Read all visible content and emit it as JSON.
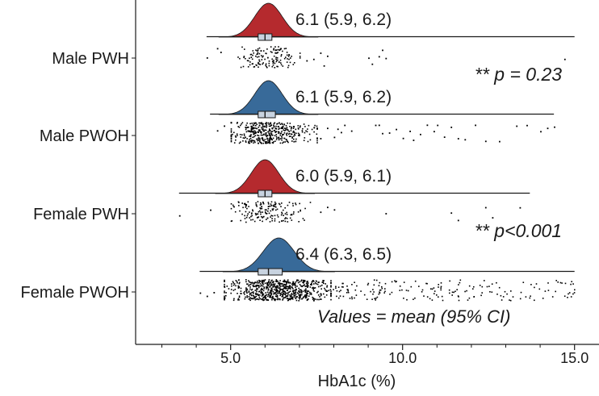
{
  "chart_data": {
    "type": "raincloud",
    "xlabel": "HbA1c (%)",
    "xlim": [
      2.8,
      15.5
    ],
    "x_ticks": [
      5.0,
      10.0,
      15.0
    ],
    "x_tick_labels": [
      "5.0",
      "10.0",
      "15.0"
    ],
    "minor_ticks": [
      3.0,
      4.0,
      6.0,
      7.0,
      8.0,
      9.0,
      11.0,
      12.0,
      13.0,
      14.0
    ],
    "groups": [
      {
        "name": "Male PWH",
        "color": "#b52a2e",
        "mean": 6.1,
        "ci_low": 5.9,
        "ci_high": 6.2,
        "annotation": "6.1 (5.9, 6.2)",
        "density_sd": 0.4,
        "range": [
          4.3,
          15.0
        ],
        "box_q1": 5.8,
        "box_median": 6.0,
        "box_q3": 6.2,
        "bulk_range": [
          5.2,
          7.0
        ],
        "bulk_n": 140,
        "points": [
          4.3,
          4.6,
          4.7,
          7.2,
          7.4,
          7.6,
          7.7,
          7.8,
          9.0,
          9.1,
          9.3,
          9.4,
          9.5,
          14.7
        ]
      },
      {
        "name": "Male PWOH",
        "color": "#386a99",
        "mean": 6.1,
        "ci_low": 5.9,
        "ci_high": 6.2,
        "annotation": "6.1 (5.9, 6.2)",
        "density_sd": 0.4,
        "range": [
          4.4,
          14.4
        ],
        "box_q1": 5.8,
        "box_median": 6.0,
        "box_q3": 6.3,
        "bulk_range": [
          5.0,
          7.5
        ],
        "bulk_n": 420,
        "points": [
          4.6,
          4.8,
          7.6,
          7.8,
          8.0,
          8.1,
          8.2,
          8.3,
          8.5,
          9.2,
          9.3,
          9.4,
          9.6,
          9.8,
          10.0,
          10.2,
          10.3,
          10.5,
          10.7,
          10.9,
          11.0,
          11.2,
          11.4,
          11.6,
          11.8,
          12.1,
          12.4,
          12.8,
          13.3,
          13.6,
          14.0,
          14.2,
          14.4
        ]
      },
      {
        "name": "Female PWH",
        "color": "#b52a2e",
        "mean": 6.0,
        "ci_low": 5.9,
        "ci_high": 6.1,
        "annotation": "6.0 (5.9, 6.1)",
        "density_sd": 0.4,
        "range": [
          3.5,
          13.7
        ],
        "box_q1": 5.8,
        "box_median": 6.0,
        "box_q3": 6.2,
        "bulk_range": [
          5.0,
          7.3
        ],
        "bulk_n": 170,
        "points": [
          3.5,
          4.4,
          7.6,
          7.8,
          8.0,
          9.5,
          11.4,
          11.6,
          12.4,
          12.6,
          13.4
        ]
      },
      {
        "name": "Female PWOH",
        "color": "#386a99",
        "mean": 6.4,
        "ci_low": 6.3,
        "ci_high": 6.5,
        "annotation": "6.4 (6.3, 6.5)",
        "density_sd": 0.45,
        "range": [
          4.1,
          15.0
        ],
        "box_q1": 5.8,
        "box_median": 6.1,
        "box_q3": 6.5,
        "bulk_range": [
          4.8,
          7.9
        ],
        "bulk_n": 700,
        "points_scatter_range": [
          7.9,
          15.0
        ],
        "points_scatter_n": 180,
        "points": [
          4.1,
          4.3,
          4.5
        ]
      }
    ],
    "annotations": [
      {
        "text": "** p = 0.23",
        "near": "Male PWH"
      },
      {
        "text": "** p<0.001",
        "near": "Female PWH"
      }
    ],
    "footnote": "Values = mean (95% CI)"
  }
}
